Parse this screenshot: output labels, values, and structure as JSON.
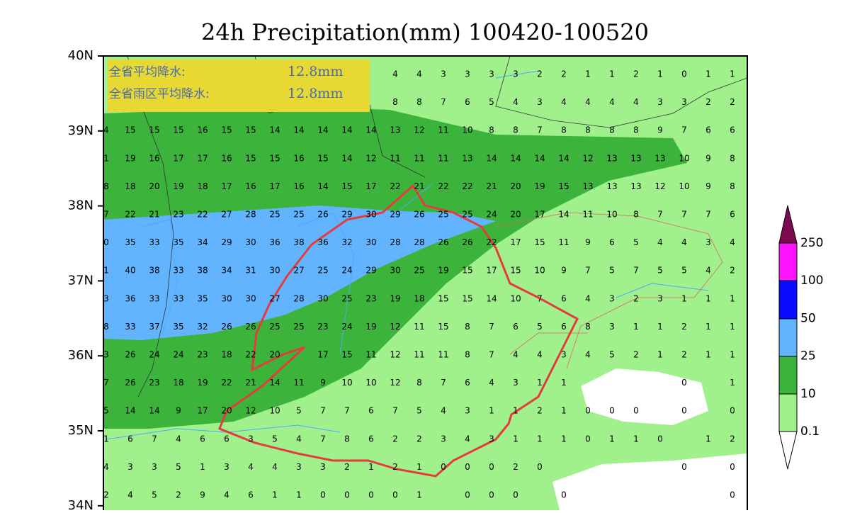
{
  "header": {
    "title": "24h Precipitation(mm) 100420-100520"
  },
  "info_box": {
    "lines": [
      {
        "label": "全省平均降水:",
        "value": "12.8mm"
      },
      {
        "label": "全省雨区平均降水:",
        "value": "12.8mm"
      }
    ]
  },
  "lat_labels": [
    "40N",
    "39N",
    "38N",
    "37N",
    "36N",
    "35N",
    "34N"
  ],
  "legend": {
    "levels": [
      0.1,
      10,
      25,
      50,
      100,
      250
    ]
  },
  "grid": {
    "rows": [
      [
        null,
        null,
        null,
        null,
        null,
        null,
        null,
        null,
        null,
        null,
        null,
        null,
        4,
        4,
        3,
        3,
        3,
        3,
        2,
        2,
        1,
        1,
        2,
        1,
        0,
        1,
        1
      ],
      [
        null,
        null,
        null,
        null,
        null,
        null,
        null,
        null,
        null,
        null,
        null,
        null,
        8,
        8,
        7,
        6,
        5,
        4,
        3,
        4,
        4,
        4,
        4,
        3,
        3,
        2,
        2
      ],
      [
        4,
        15,
        15,
        15,
        16,
        15,
        15,
        14,
        14,
        14,
        14,
        14,
        13,
        12,
        11,
        10,
        8,
        8,
        7,
        8,
        8,
        8,
        8,
        9,
        7,
        6,
        6
      ],
      [
        1,
        19,
        16,
        17,
        17,
        16,
        15,
        15,
        16,
        15,
        14,
        12,
        11,
        11,
        11,
        13,
        14,
        14,
        14,
        14,
        12,
        13,
        13,
        13,
        10,
        9,
        8
      ],
      [
        8,
        18,
        20,
        19,
        18,
        17,
        16,
        17,
        16,
        14,
        15,
        17,
        22,
        21,
        22,
        22,
        21,
        20,
        19,
        15,
        13,
        13,
        13,
        12,
        10,
        9,
        8
      ],
      [
        7,
        22,
        21,
        23,
        22,
        27,
        28,
        25,
        25,
        26,
        29,
        30,
        29,
        26,
        25,
        25,
        24,
        20,
        17,
        14,
        11,
        10,
        8,
        7,
        7,
        7,
        6
      ],
      [
        0,
        35,
        33,
        35,
        34,
        29,
        30,
        36,
        38,
        36,
        32,
        30,
        28,
        28,
        26,
        26,
        22,
        17,
        15,
        11,
        9,
        6,
        5,
        4,
        4,
        3,
        4
      ],
      [
        1,
        40,
        38,
        33,
        38,
        34,
        31,
        30,
        27,
        25,
        24,
        29,
        30,
        25,
        19,
        15,
        17,
        15,
        10,
        9,
        7,
        5,
        7,
        5,
        5,
        4,
        2
      ],
      [
        3,
        36,
        33,
        33,
        35,
        30,
        30,
        27,
        28,
        30,
        25,
        23,
        19,
        18,
        15,
        15,
        14,
        10,
        7,
        6,
        4,
        3,
        2,
        3,
        1,
        1,
        1
      ],
      [
        8,
        33,
        37,
        35,
        32,
        26,
        26,
        25,
        25,
        23,
        24,
        19,
        12,
        11,
        15,
        8,
        7,
        6,
        5,
        6,
        8,
        3,
        1,
        1,
        2,
        1,
        1
      ],
      [
        3,
        26,
        24,
        24,
        23,
        18,
        22,
        20,
        null,
        17,
        15,
        11,
        12,
        11,
        11,
        8,
        7,
        4,
        4,
        3,
        4,
        5,
        2,
        1,
        2,
        1,
        1
      ],
      [
        7,
        26,
        23,
        18,
        19,
        22,
        21,
        14,
        11,
        9,
        10,
        10,
        12,
        8,
        7,
        6,
        4,
        3,
        1,
        1,
        null,
        null,
        null,
        null,
        0,
        null,
        1
      ],
      [
        5,
        14,
        14,
        9,
        17,
        20,
        12,
        10,
        5,
        7,
        7,
        6,
        7,
        5,
        4,
        3,
        1,
        1,
        2,
        1,
        0,
        0,
        0,
        null,
        0,
        null,
        0
      ],
      [
        1,
        6,
        7,
        4,
        6,
        6,
        3,
        5,
        4,
        7,
        8,
        6,
        2,
        2,
        3,
        4,
        3,
        1,
        1,
        1,
        0,
        1,
        1,
        0,
        null,
        1,
        2
      ],
      [
        4,
        3,
        3,
        5,
        1,
        3,
        4,
        4,
        3,
        3,
        2,
        1,
        2,
        1,
        0,
        0,
        0,
        2,
        0,
        null,
        null,
        null,
        null,
        null,
        0,
        null,
        0
      ],
      [
        2,
        4,
        5,
        2,
        9,
        4,
        6,
        1,
        1,
        0,
        0,
        0,
        0,
        1,
        null,
        0,
        0,
        0,
        null,
        0,
        null,
        null,
        null,
        null,
        null,
        null,
        0
      ]
    ]
  }
}
